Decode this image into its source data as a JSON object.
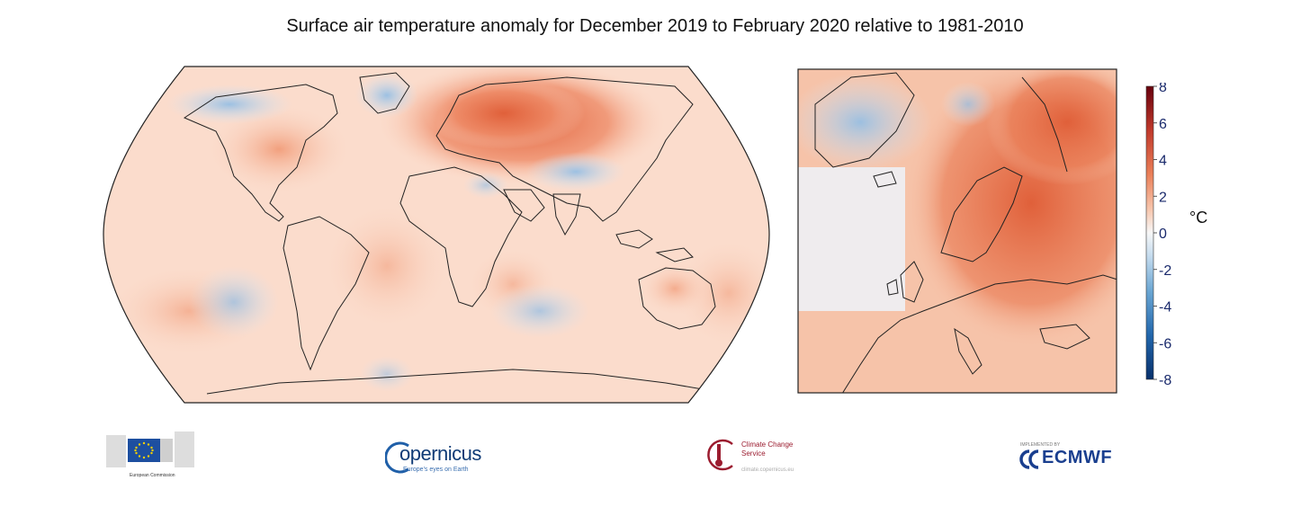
{
  "title": "Surface air temperature anomaly for December 2019 to February 2020 relative to 1981-2010",
  "colorbar": {
    "ticks": [
      "8",
      "6",
      "4",
      "2",
      "0",
      "-2",
      "-4",
      "-6",
      "-8"
    ],
    "unit": "°C",
    "min": -8,
    "max": 8,
    "colors": [
      "#08306b",
      "#2166ac",
      "#4393c3",
      "#92c5de",
      "#f7f7f7",
      "#f4a582",
      "#e0603a",
      "#c0392b",
      "#8c1a14"
    ]
  },
  "logos": {
    "eu": {
      "icon": "eu-flag-icon",
      "text": "European Commission"
    },
    "copernicus": {
      "word": "opernicus",
      "sub": "Europe's eyes on Earth"
    },
    "c3s": {
      "name": "Climate Change Service",
      "url": "climate.copernicus.eu"
    },
    "ecmwf": {
      "top": "IMPLEMENTED BY",
      "word": "ECMWF"
    }
  }
}
